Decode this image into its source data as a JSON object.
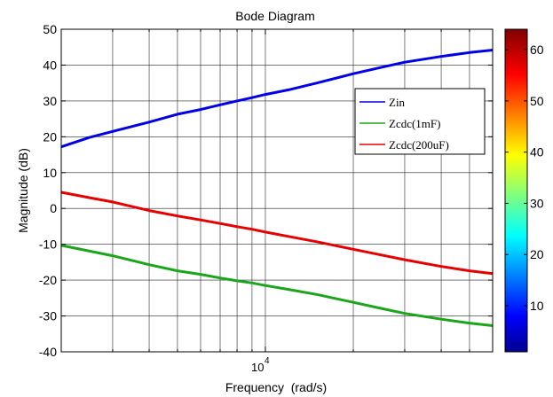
{
  "chart_data": {
    "type": "line",
    "title": "Bode Diagram",
    "xlabel": "Frequency  (rad/s)",
    "ylabel": "Magnitude (dB)",
    "x_scale": "log",
    "xlim": [
      2000,
      60000
    ],
    "ylim": [
      -40,
      50
    ],
    "grid": true,
    "x_tick_label": {
      "base": "10",
      "exponent": "4",
      "value": 10000
    },
    "y_ticks": [
      -40,
      -30,
      -20,
      -10,
      0,
      10,
      20,
      30,
      40,
      50
    ],
    "legend_position": "right",
    "series": [
      {
        "name": "Zin",
        "color": "#0000e6",
        "points": [
          [
            2000,
            17.2
          ],
          [
            2500,
            19.8
          ],
          [
            3000,
            21.5
          ],
          [
            4000,
            24.1
          ],
          [
            5000,
            26.3
          ],
          [
            6000,
            27.6
          ],
          [
            7000,
            28.9
          ],
          [
            8000,
            30.0
          ],
          [
            9000,
            30.9
          ],
          [
            10000,
            31.8
          ],
          [
            12000,
            33.1
          ],
          [
            15000,
            35.0
          ],
          [
            20000,
            37.6
          ],
          [
            25000,
            39.4
          ],
          [
            30000,
            40.8
          ],
          [
            40000,
            42.4
          ],
          [
            50000,
            43.5
          ],
          [
            60000,
            44.2
          ]
        ]
      },
      {
        "name": "Zcdc(1mF)",
        "color": "#1aa51a",
        "points": [
          [
            2000,
            -10.3
          ],
          [
            3000,
            -13.2
          ],
          [
            4000,
            -15.7
          ],
          [
            5000,
            -17.4
          ],
          [
            6000,
            -18.4
          ],
          [
            7000,
            -19.4
          ],
          [
            8000,
            -20.2
          ],
          [
            9000,
            -20.8
          ],
          [
            10000,
            -21.5
          ],
          [
            12000,
            -22.6
          ],
          [
            15000,
            -24.0
          ],
          [
            20000,
            -26.2
          ],
          [
            25000,
            -27.9
          ],
          [
            30000,
            -29.3
          ],
          [
            40000,
            -30.9
          ],
          [
            50000,
            -32.0
          ],
          [
            60000,
            -32.7
          ]
        ]
      },
      {
        "name": "Zcdc(200uF)",
        "color": "#e60000",
        "points": [
          [
            2000,
            4.5
          ],
          [
            2500,
            3.0
          ],
          [
            3000,
            1.8
          ],
          [
            4000,
            -0.6
          ],
          [
            5000,
            -2.1
          ],
          [
            6000,
            -3.2
          ],
          [
            7000,
            -4.2
          ],
          [
            8000,
            -5.1
          ],
          [
            9000,
            -5.8
          ],
          [
            10000,
            -6.6
          ],
          [
            12000,
            -7.8
          ],
          [
            15000,
            -9.3
          ],
          [
            20000,
            -11.4
          ],
          [
            25000,
            -13.0
          ],
          [
            30000,
            -14.3
          ],
          [
            40000,
            -16.2
          ],
          [
            50000,
            -17.4
          ],
          [
            60000,
            -18.2
          ]
        ]
      }
    ]
  },
  "colorbar": {
    "range": [
      1,
      64
    ],
    "ticks": [
      10,
      20,
      30,
      40,
      50,
      60
    ],
    "colormap": "jet"
  }
}
